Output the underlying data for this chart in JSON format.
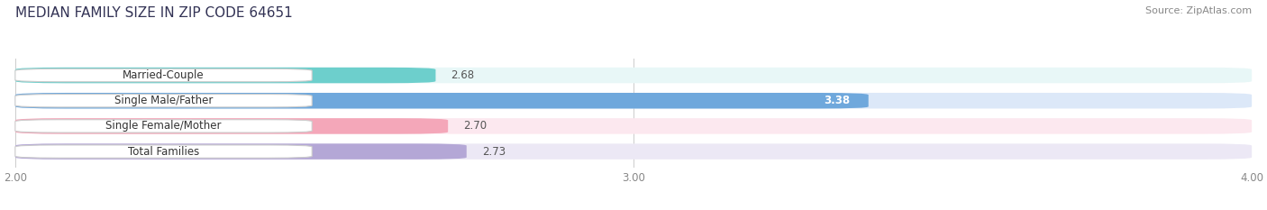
{
  "title": "MEDIAN FAMILY SIZE IN ZIP CODE 64651",
  "source": "Source: ZipAtlas.com",
  "categories": [
    "Married-Couple",
    "Single Male/Father",
    "Single Female/Mother",
    "Total Families"
  ],
  "values": [
    2.68,
    3.38,
    2.7,
    2.73
  ],
  "bar_colors": [
    "#6dcfcc",
    "#6fa8dc",
    "#f4a7b9",
    "#b4a7d6"
  ],
  "bar_bg_colors": [
    "#e8f7f7",
    "#dce8f8",
    "#fce8ef",
    "#ece8f5"
  ],
  "xlim": [
    2.0,
    4.0
  ],
  "xticks": [
    2.0,
    3.0,
    4.0
  ],
  "xtick_labels": [
    "2.00",
    "3.00",
    "4.00"
  ],
  "bar_height": 0.62,
  "value_label_fontsize": 8.5,
  "category_fontsize": 8.5,
  "title_fontsize": 11,
  "source_fontsize": 8,
  "bg_color": "#ffffff",
  "grid_color": "#cccccc",
  "title_color": "#333355",
  "source_color": "#888888"
}
